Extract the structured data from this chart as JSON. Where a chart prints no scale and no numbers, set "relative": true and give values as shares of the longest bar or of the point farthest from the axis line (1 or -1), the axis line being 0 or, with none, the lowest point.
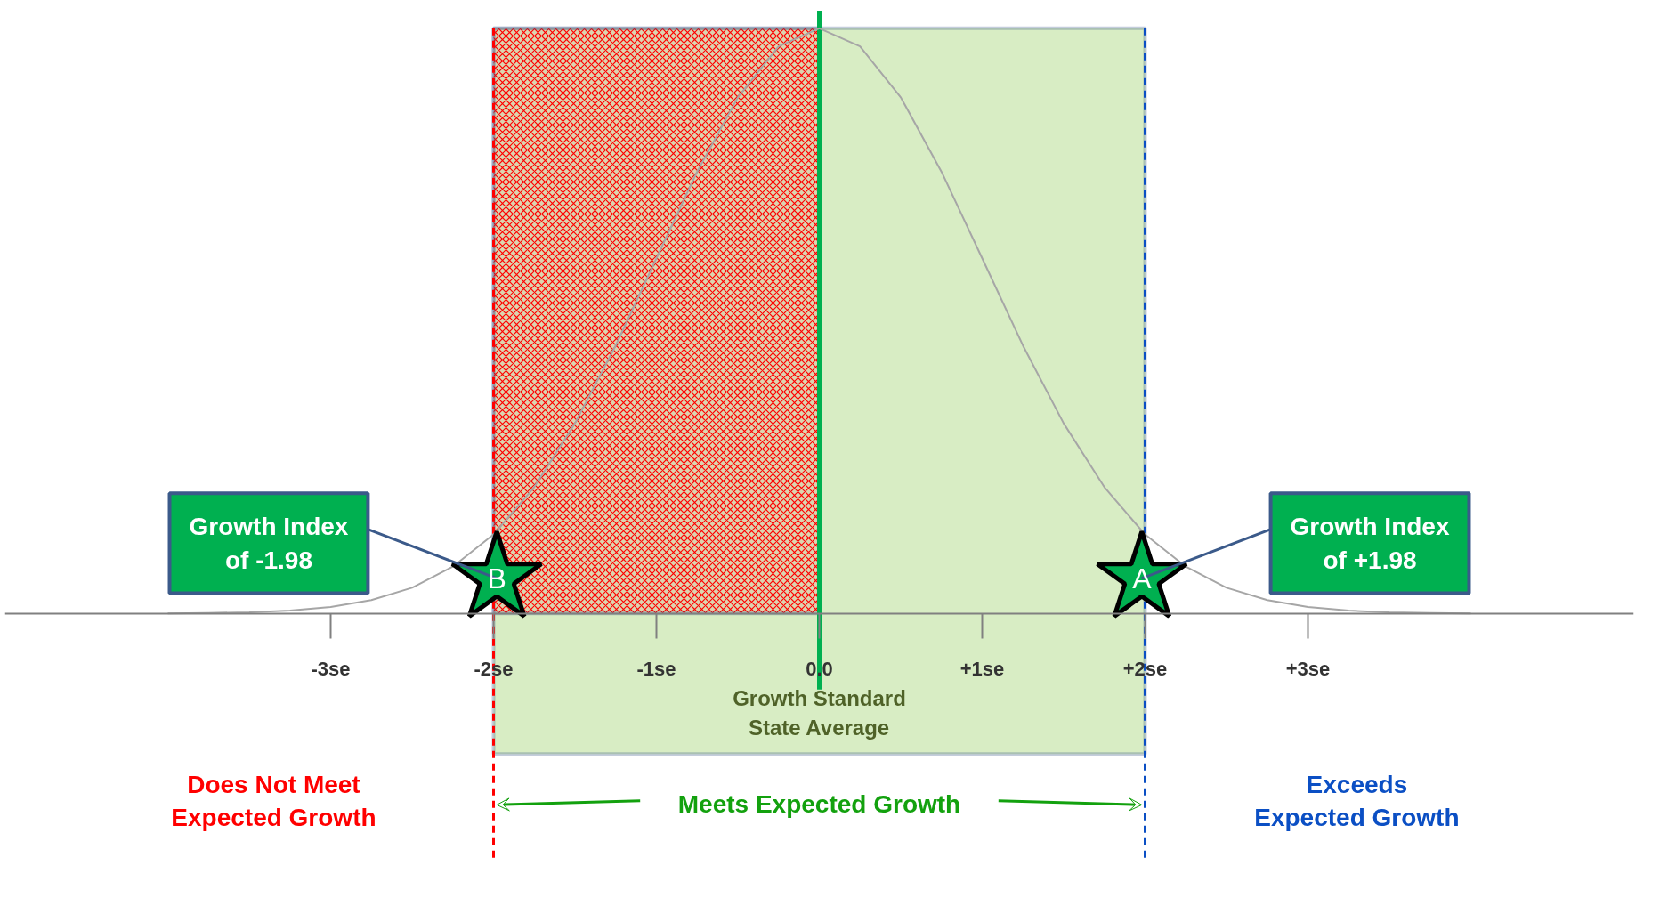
{
  "chart_data": {
    "type": "line",
    "relative": true,
    "x": [
      -4,
      -3.75,
      -3.5,
      -3.25,
      -3,
      -2.75,
      -2.5,
      -2.25,
      -2,
      -1.75,
      -1.5,
      -1.25,
      -1,
      -0.75,
      -0.5,
      -0.25,
      0,
      0.25,
      0.5,
      0.75,
      1,
      1.25,
      1.5,
      1.75,
      2,
      2.25,
      2.5,
      2.75,
      3,
      3.25,
      3.5,
      3.75,
      4
    ],
    "series": [
      {
        "color": "#a6a6a6",
        "values": [
          0,
          0.001,
          0.002,
          0.005,
          0.011,
          0.023,
          0.044,
          0.08,
          0.135,
          0.216,
          0.325,
          0.458,
          0.607,
          0.755,
          0.882,
          0.969,
          1,
          0.969,
          0.882,
          0.755,
          0.607,
          0.458,
          0.325,
          0.216,
          0.135,
          0.08,
          0.044,
          0.023,
          0.011,
          0.005,
          0.002,
          0.001,
          0
        ]
      },
      {
        "type": "scatter",
        "name": "B",
        "x": [
          -1.98
        ],
        "values": [
          0.06
        ],
        "color": "#00b050",
        "marker": "star"
      },
      {
        "type": "scatter",
        "name": "A",
        "x": [
          1.98
        ],
        "values": [
          0.06
        ],
        "color": "#00b050",
        "marker": "star"
      }
    ],
    "xlim": [
      -5,
      5
    ],
    "xticks": [
      {
        "value": -3,
        "label": "-3se"
      },
      {
        "value": -2,
        "label": "-2se"
      },
      {
        "value": -1,
        "label": "-1se"
      },
      {
        "value": 0,
        "label": "0.0"
      },
      {
        "value": 1,
        "label": "+1se"
      },
      {
        "value": 2,
        "label": "+2se"
      },
      {
        "value": 3,
        "label": "+3se"
      }
    ],
    "grid": false,
    "marker": "none",
    "bands": [
      {
        "axis": "x",
        "from": -2,
        "to": 2,
        "label": "Meets Expected Growth",
        "color": "#d8edc4"
      },
      {
        "axis": "x",
        "from": -2,
        "to": 0,
        "color": "#ff0000"
      }
    ],
    "ref_lines": [
      {
        "axis": "x",
        "value": 0,
        "label": "Growth Standard\nState Average",
        "color": "#00b050"
      },
      {
        "axis": "x",
        "value": -2,
        "label": "Does Not Meet\nExpected Growth",
        "color": "#ff0000",
        "line_style": "dashed"
      },
      {
        "axis": "x",
        "value": 2,
        "label": "Exceeds\nExpected Growth",
        "color": "#0b4fc4",
        "line_style": "dashed"
      }
    ],
    "annotations": [
      {
        "text": "Growth Index\nof -1.98",
        "x": -1.98,
        "y": 0.06
      },
      {
        "text": "Growth Index\nof +1.98",
        "x": 1.98,
        "y": 0.06
      }
    ]
  }
}
